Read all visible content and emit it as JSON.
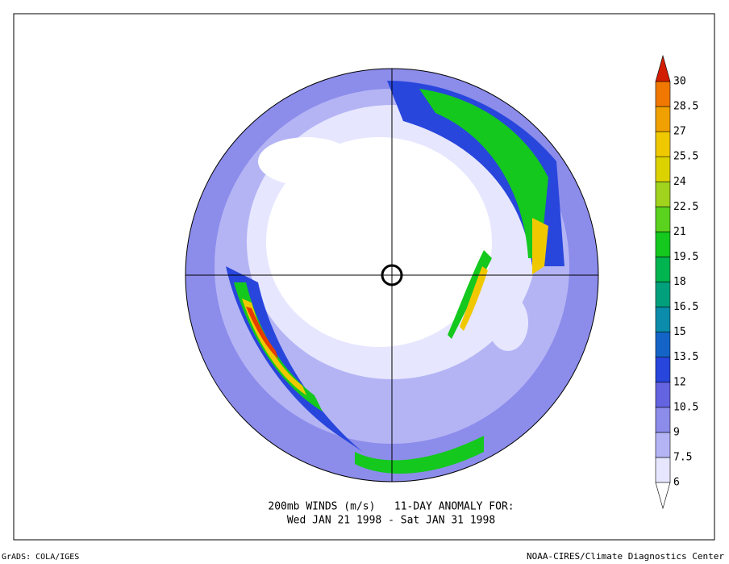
{
  "title": [
    "200mb WINDS (m/s)   11-DAY ANOMALY FOR:",
    "Wed JAN 21 1998 - Sat JAN 31 1998"
  ],
  "colorbar": {
    "levels": [
      6,
      7.5,
      9,
      10.5,
      12,
      13.5,
      15,
      16.5,
      18,
      19.5,
      21,
      22.5,
      24,
      25.5,
      27,
      28.5,
      30
    ],
    "colors": [
      "#e6e6ff",
      "#b4b4f5",
      "#8c8ceb",
      "#6464e1",
      "#2846dc",
      "#1464c8",
      "#0a8caa",
      "#00a07d",
      "#00b450",
      "#14c81e",
      "#5ad21e",
      "#a0d21e",
      "#dcd200",
      "#f0c800",
      "#f0a000",
      "#f07800"
    ],
    "under_color": "#ffffff",
    "over_color": "#d21e00"
  },
  "footer_left": "GrADS: COLA/IGES",
  "footer_right": "NOAA-CIRES/Climate Diagnostics Center"
}
